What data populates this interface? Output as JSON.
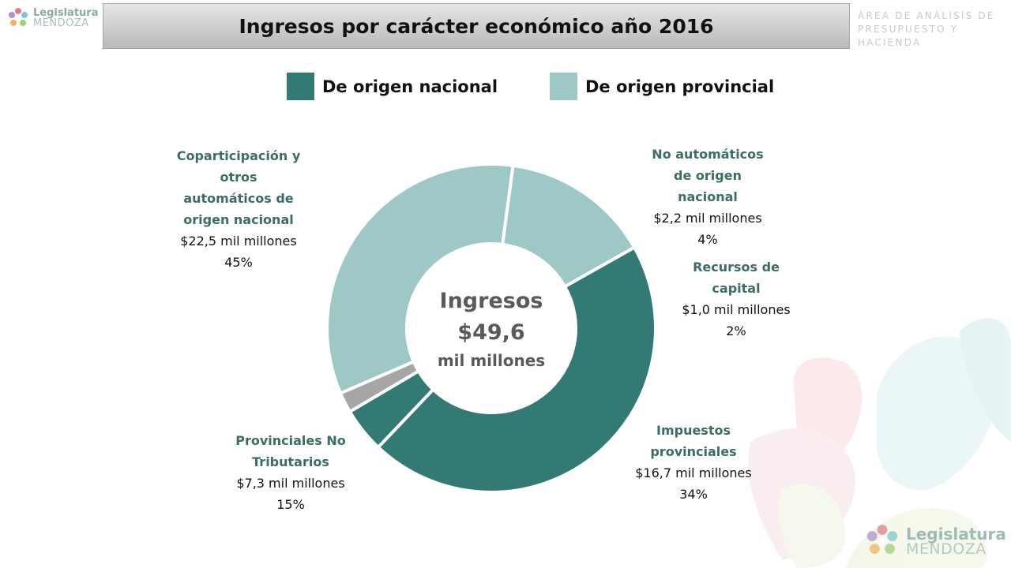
{
  "title": "Ingresos por carácter económico año 2016",
  "header_logo": {
    "line1": "Legislatura",
    "line2": "MENDOZA"
  },
  "footer_logo": {
    "line1": "Legislatura",
    "line2": "MENDOZA"
  },
  "area": {
    "line1": "ÁREA DE ANÁLISIS DE",
    "line2": "PRESUPUESTO Y HACIENDA"
  },
  "legend": [
    {
      "label": "De origen nacional",
      "color": "#347a74"
    },
    {
      "label": "De origen provincial",
      "color": "#9ec8c6"
    }
  ],
  "center": {
    "line1": "Ingresos",
    "line2": "$49,6",
    "line3": "mil millones"
  },
  "colors": {
    "nacional": "#347a74",
    "provincial": "#9ec8c6",
    "capital": "#a6a6a6",
    "label_name": "#3a6d66",
    "center_text": "#5a5a5a"
  },
  "chart_data": {
    "type": "pie",
    "variant": "donut",
    "title": "Ingresos por carácter económico año 2016",
    "unit": "mil millones",
    "total": 49.6,
    "slices": [
      {
        "name": "Coparticipación y otros automáticos de origen nacional",
        "value": 22.5,
        "percent": 45,
        "amount_label": "$22,5 mil millones",
        "percent_label": "45%",
        "group": "nacional",
        "color": "#347a74"
      },
      {
        "name": "No automáticos de origen nacional",
        "value": 2.2,
        "percent": 4,
        "amount_label": "$2,2 mil millones",
        "percent_label": "4%",
        "group": "nacional",
        "color": "#347a74"
      },
      {
        "name": "Recursos de capital",
        "value": 1.0,
        "percent": 2,
        "amount_label": "$1,0 mil millones",
        "percent_label": "2%",
        "group": "capital",
        "color": "#a6a6a6"
      },
      {
        "name": "Impuestos provinciales",
        "value": 16.7,
        "percent": 34,
        "amount_label": "$16,7 mil millones",
        "percent_label": "34%",
        "group": "provincial",
        "color": "#9ec8c6"
      },
      {
        "name": "Provinciales No Tributarios",
        "value": 7.3,
        "percent": 15,
        "amount_label": "$7,3 mil millones",
        "percent_label": "15%",
        "group": "provincial",
        "color": "#9ec8c6"
      }
    ]
  }
}
